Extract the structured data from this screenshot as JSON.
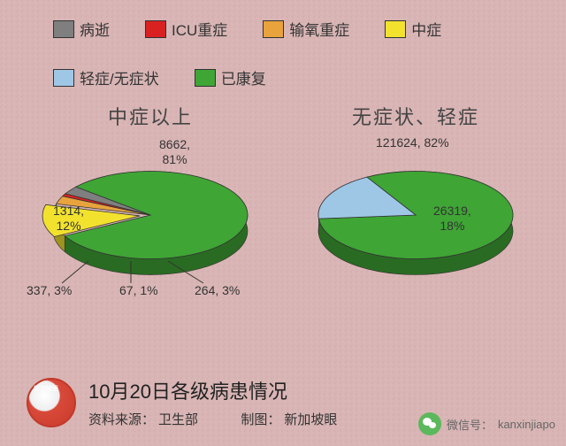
{
  "background_color": "#d9b5b5",
  "legend": [
    {
      "label": "病逝",
      "color": "#7f7f7f"
    },
    {
      "label": "ICU重症",
      "color": "#d92121"
    },
    {
      "label": "输氧重症",
      "color": "#e8a33d"
    },
    {
      "label": "中症",
      "color": "#f2e22e"
    },
    {
      "label": "轻症/无症状",
      "color": "#9ec7e6"
    },
    {
      "label": "已康复",
      "color": "#3fa535"
    }
  ],
  "left_chart": {
    "title": "中症以上",
    "slices": [
      {
        "label": "已康复",
        "value": 8662,
        "pct": 81,
        "color": "#3fa535"
      },
      {
        "label": "中症",
        "value": 1314,
        "pct": 12,
        "color": "#f2e22e"
      },
      {
        "label": "输氧重症",
        "value": 337,
        "pct": 3,
        "color": "#e8a33d"
      },
      {
        "label": "ICU重症",
        "value": 67,
        "pct": 1,
        "color": "#d92121"
      },
      {
        "label": "病逝",
        "value": 264,
        "pct": 3,
        "color": "#7f7f7f"
      }
    ],
    "callouts": {
      "top": "8662,\n81%",
      "left": "1314,\n12%",
      "bl": "337, 3%",
      "bc": "67, 1%",
      "br": "264, 3%"
    }
  },
  "right_chart": {
    "title": "无症状、轻症",
    "slices": [
      {
        "label": "已康复",
        "value": 121624,
        "pct": 82,
        "color": "#3fa535"
      },
      {
        "label": "轻症/无症状",
        "value": 26319,
        "pct": 18,
        "color": "#9ec7e6"
      }
    ],
    "callouts": {
      "top": "121624, 82%",
      "mid": "26319,\n18%"
    }
  },
  "footer": {
    "title": "10月20日各级病患情况",
    "source_label": "资料来源：",
    "source_value": "卫生部",
    "maker_label": "制图：",
    "maker_value": "新加坡眼"
  },
  "wechat": {
    "label": "微信号：",
    "id": "kanxinjiapo"
  },
  "style": {
    "pie_tilt": 0.45,
    "pie_depth": 18,
    "stroke": "#333333",
    "font_color": "#333333",
    "title_fontsize": 22,
    "label_fontsize": 14
  }
}
